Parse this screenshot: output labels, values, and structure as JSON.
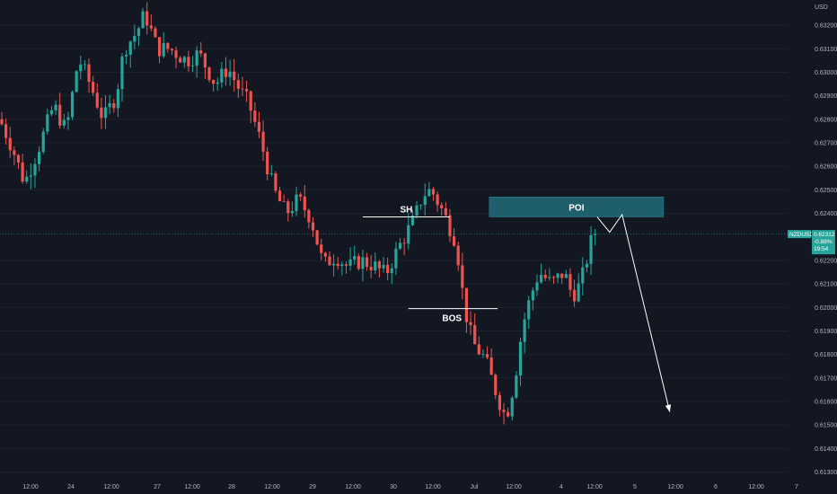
{
  "chart_data": {
    "type": "candlestick",
    "symbol": "NZDUSD",
    "currency": "USD",
    "ylim": [
      0.6126,
      0.633
    ],
    "y_ticks": [
      "0.63200",
      "0.63100",
      "0.63000",
      "0.62900",
      "0.62800",
      "0.62700",
      "0.62600",
      "0.62500",
      "0.62400",
      "0.62200",
      "0.62100",
      "0.62000",
      "0.61900",
      "0.61800",
      "0.61700",
      "0.61600",
      "0.61500",
      "0.61400",
      "0.61300"
    ],
    "x_ticks": [
      "12:00",
      "24",
      "12:00",
      "27",
      "12:00",
      "28",
      "12:00",
      "29",
      "12:00",
      "30",
      "12:00",
      "Jul",
      "12:00",
      "4",
      "12:00",
      "5",
      "12:00",
      "6",
      "12:00",
      "7"
    ],
    "last_price": {
      "symbol": "NZDUSD",
      "price": "0.62312",
      "change": "-0.88%",
      "countdown": "19:54",
      "value": 0.62312,
      "color": "#26a69a"
    },
    "candle_count": 164,
    "path": [
      [
        0,
        0.628
      ],
      [
        3,
        0.6268
      ],
      [
        6,
        0.6253
      ],
      [
        9,
        0.6266
      ],
      [
        13,
        0.6286
      ],
      [
        16,
        0.6275
      ],
      [
        19,
        0.6306
      ],
      [
        22,
        0.6294
      ],
      [
        25,
        0.628
      ],
      [
        28,
        0.629
      ],
      [
        30,
        0.631
      ],
      [
        33,
        0.6317
      ],
      [
        35,
        0.6325
      ],
      [
        38,
        0.631
      ],
      [
        41,
        0.631
      ],
      [
        45,
        0.6305
      ],
      [
        48,
        0.6308
      ],
      [
        52,
        0.6295
      ],
      [
        55,
        0.6302
      ],
      [
        58,
        0.6292
      ],
      [
        60,
        0.6287
      ],
      [
        63,
        0.627
      ],
      [
        66,
        0.625
      ],
      [
        69,
        0.624
      ],
      [
        72,
        0.6246
      ],
      [
        75,
        0.6238
      ],
      [
        78,
        0.6218
      ],
      [
        81,
        0.6222
      ],
      [
        84,
        0.6217
      ],
      [
        87,
        0.622
      ],
      [
        90,
        0.6218
      ],
      [
        93,
        0.6214
      ],
      [
        96,
        0.6225
      ],
      [
        100,
        0.6238
      ],
      [
        102,
        0.6248
      ],
      [
        104,
        0.625
      ],
      [
        107,
        0.624
      ],
      [
        110,
        0.6228
      ],
      [
        112,
        0.62
      ],
      [
        114,
        0.6185
      ],
      [
        117,
        0.6178
      ],
      [
        120,
        0.6162
      ],
      [
        122,
        0.6153
      ],
      [
        124,
        0.6168
      ],
      [
        126,
        0.6192
      ],
      [
        128,
        0.6205
      ],
      [
        130,
        0.6215
      ],
      [
        133,
        0.621
      ],
      [
        136,
        0.6215
      ],
      [
        138,
        0.6205
      ],
      [
        140,
        0.621
      ],
      [
        143,
        0.62312
      ]
    ],
    "seed": 7,
    "poi": {
      "label": "POI",
      "y_top": 0.6247,
      "y_bottom": 0.62385,
      "color": "#1f5f6b"
    },
    "sh": {
      "label": "SH",
      "y": 0.62385
    },
    "bos": {
      "label": "BOS",
      "y": 0.61995
    },
    "projection": [
      [
        143.5,
        0.62385
      ],
      [
        146.5,
        0.6232
      ],
      [
        149.5,
        0.62395
      ],
      [
        161,
        0.61555
      ]
    ],
    "colors": {
      "up": "#26a69a",
      "down": "#ef5350",
      "background": "#131722",
      "grid": "#1e222d",
      "axis_text": "#b2b5be"
    }
  }
}
